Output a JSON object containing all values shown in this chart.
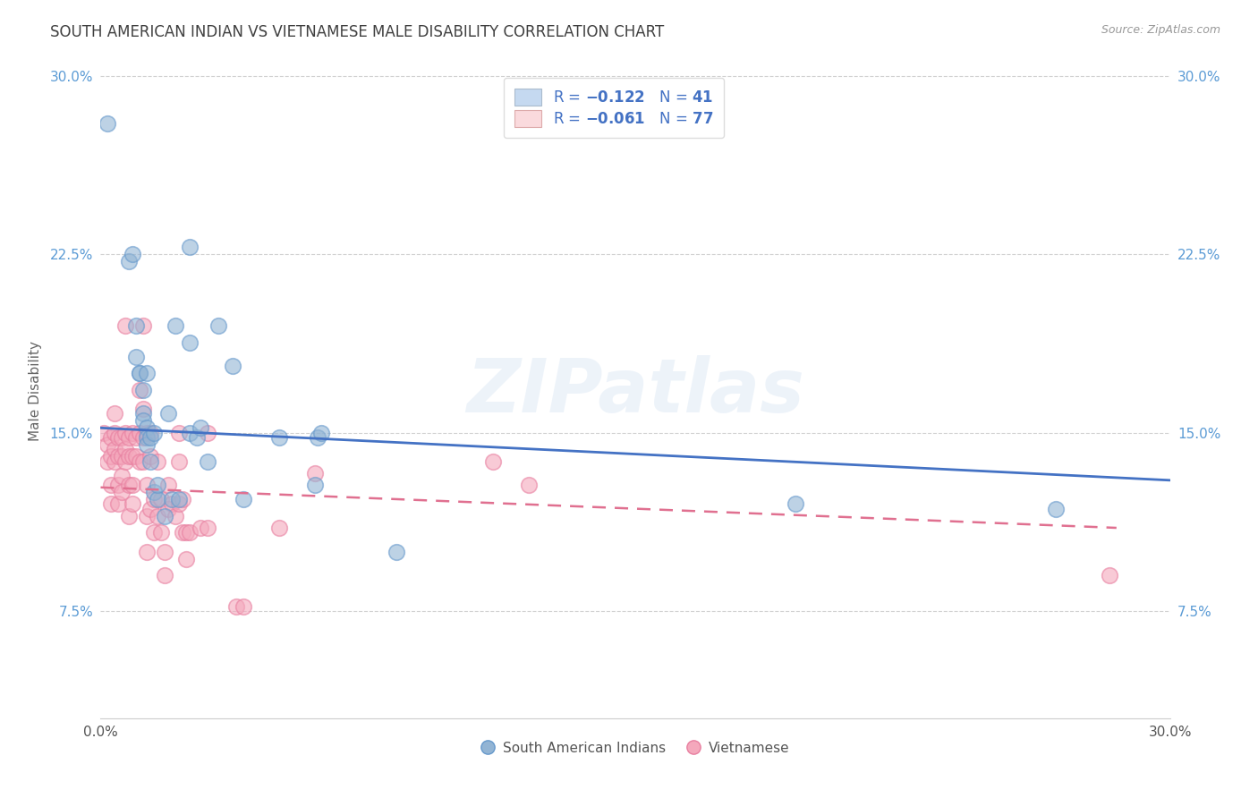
{
  "title": "SOUTH AMERICAN INDIAN VS VIETNAMESE MALE DISABILITY CORRELATION CHART",
  "source": "Source: ZipAtlas.com",
  "ylabel": "Male Disability",
  "legend_label1": "South American Indians",
  "legend_label2": "Vietnamese",
  "watermark": "ZIPatlas",
  "blue_color": "#92b4d4",
  "blue_edge": "#6699cc",
  "pink_color": "#f4a8bc",
  "pink_edge": "#e87fa0",
  "blue_line_color": "#4472c4",
  "pink_line_color": "#e07090",
  "blue_fill": "#c5d9f0",
  "pink_fill": "#fadadd",
  "blue_scatter": [
    [
      0.002,
      0.28
    ],
    [
      0.008,
      0.222
    ],
    [
      0.009,
      0.225
    ],
    [
      0.01,
      0.195
    ],
    [
      0.01,
      0.182
    ],
    [
      0.011,
      0.175
    ],
    [
      0.011,
      0.175
    ],
    [
      0.012,
      0.168
    ],
    [
      0.012,
      0.158
    ],
    [
      0.012,
      0.155
    ],
    [
      0.013,
      0.152
    ],
    [
      0.013,
      0.148
    ],
    [
      0.013,
      0.145
    ],
    [
      0.013,
      0.175
    ],
    [
      0.014,
      0.148
    ],
    [
      0.014,
      0.138
    ],
    [
      0.015,
      0.15
    ],
    [
      0.015,
      0.125
    ],
    [
      0.016,
      0.122
    ],
    [
      0.016,
      0.128
    ],
    [
      0.018,
      0.115
    ],
    [
      0.019,
      0.158
    ],
    [
      0.02,
      0.122
    ],
    [
      0.021,
      0.195
    ],
    [
      0.022,
      0.122
    ],
    [
      0.025,
      0.228
    ],
    [
      0.025,
      0.188
    ],
    [
      0.025,
      0.15
    ],
    [
      0.027,
      0.148
    ],
    [
      0.028,
      0.152
    ],
    [
      0.03,
      0.138
    ],
    [
      0.033,
      0.195
    ],
    [
      0.037,
      0.178
    ],
    [
      0.04,
      0.122
    ],
    [
      0.06,
      0.128
    ],
    [
      0.061,
      0.148
    ],
    [
      0.062,
      0.15
    ],
    [
      0.083,
      0.1
    ],
    [
      0.195,
      0.12
    ],
    [
      0.268,
      0.118
    ],
    [
      0.05,
      0.148
    ]
  ],
  "pink_scatter": [
    [
      0.001,
      0.15
    ],
    [
      0.002,
      0.145
    ],
    [
      0.002,
      0.138
    ],
    [
      0.003,
      0.148
    ],
    [
      0.003,
      0.14
    ],
    [
      0.003,
      0.128
    ],
    [
      0.003,
      0.12
    ],
    [
      0.004,
      0.158
    ],
    [
      0.004,
      0.15
    ],
    [
      0.004,
      0.143
    ],
    [
      0.004,
      0.138
    ],
    [
      0.005,
      0.148
    ],
    [
      0.005,
      0.14
    ],
    [
      0.005,
      0.128
    ],
    [
      0.005,
      0.12
    ],
    [
      0.006,
      0.148
    ],
    [
      0.006,
      0.14
    ],
    [
      0.006,
      0.132
    ],
    [
      0.006,
      0.125
    ],
    [
      0.007,
      0.195
    ],
    [
      0.007,
      0.15
    ],
    [
      0.007,
      0.143
    ],
    [
      0.007,
      0.138
    ],
    [
      0.008,
      0.148
    ],
    [
      0.008,
      0.14
    ],
    [
      0.008,
      0.128
    ],
    [
      0.008,
      0.115
    ],
    [
      0.009,
      0.15
    ],
    [
      0.009,
      0.14
    ],
    [
      0.009,
      0.128
    ],
    [
      0.009,
      0.12
    ],
    [
      0.01,
      0.148
    ],
    [
      0.01,
      0.14
    ],
    [
      0.011,
      0.168
    ],
    [
      0.011,
      0.15
    ],
    [
      0.011,
      0.138
    ],
    [
      0.012,
      0.195
    ],
    [
      0.012,
      0.16
    ],
    [
      0.012,
      0.148
    ],
    [
      0.012,
      0.138
    ],
    [
      0.013,
      0.15
    ],
    [
      0.013,
      0.128
    ],
    [
      0.013,
      0.115
    ],
    [
      0.013,
      0.1
    ],
    [
      0.014,
      0.15
    ],
    [
      0.014,
      0.14
    ],
    [
      0.014,
      0.118
    ],
    [
      0.015,
      0.122
    ],
    [
      0.015,
      0.108
    ],
    [
      0.016,
      0.138
    ],
    [
      0.016,
      0.115
    ],
    [
      0.017,
      0.122
    ],
    [
      0.017,
      0.108
    ],
    [
      0.018,
      0.1
    ],
    [
      0.018,
      0.09
    ],
    [
      0.019,
      0.128
    ],
    [
      0.019,
      0.118
    ],
    [
      0.02,
      0.12
    ],
    [
      0.021,
      0.115
    ],
    [
      0.022,
      0.15
    ],
    [
      0.022,
      0.138
    ],
    [
      0.022,
      0.12
    ],
    [
      0.023,
      0.122
    ],
    [
      0.023,
      0.108
    ],
    [
      0.024,
      0.108
    ],
    [
      0.024,
      0.097
    ],
    [
      0.025,
      0.108
    ],
    [
      0.028,
      0.11
    ],
    [
      0.03,
      0.15
    ],
    [
      0.03,
      0.11
    ],
    [
      0.038,
      0.077
    ],
    [
      0.04,
      0.077
    ],
    [
      0.05,
      0.11
    ],
    [
      0.06,
      0.133
    ],
    [
      0.11,
      0.138
    ],
    [
      0.12,
      0.128
    ],
    [
      0.283,
      0.09
    ]
  ],
  "xlim": [
    0.0,
    0.3
  ],
  "ylim": [
    0.03,
    0.305
  ],
  "blue_trendline_x": [
    0.0,
    0.3
  ],
  "blue_trendline_y": [
    0.152,
    0.13
  ],
  "pink_trendline_x": [
    0.0,
    0.285
  ],
  "pink_trendline_y": [
    0.127,
    0.11
  ],
  "ytick_vals": [
    0.075,
    0.15,
    0.225,
    0.3
  ],
  "ytick_labels": [
    "7.5%",
    "15.0%",
    "22.5%",
    "30.0%"
  ],
  "xtick_vals": [
    0.0,
    0.3
  ],
  "xtick_labels": [
    "0.0%",
    "30.0%"
  ],
  "background_color": "#ffffff",
  "grid_color": "#cccccc",
  "tick_color": "#5b9bd5",
  "title_color": "#404040",
  "source_color": "#999999",
  "ylabel_color": "#666666"
}
